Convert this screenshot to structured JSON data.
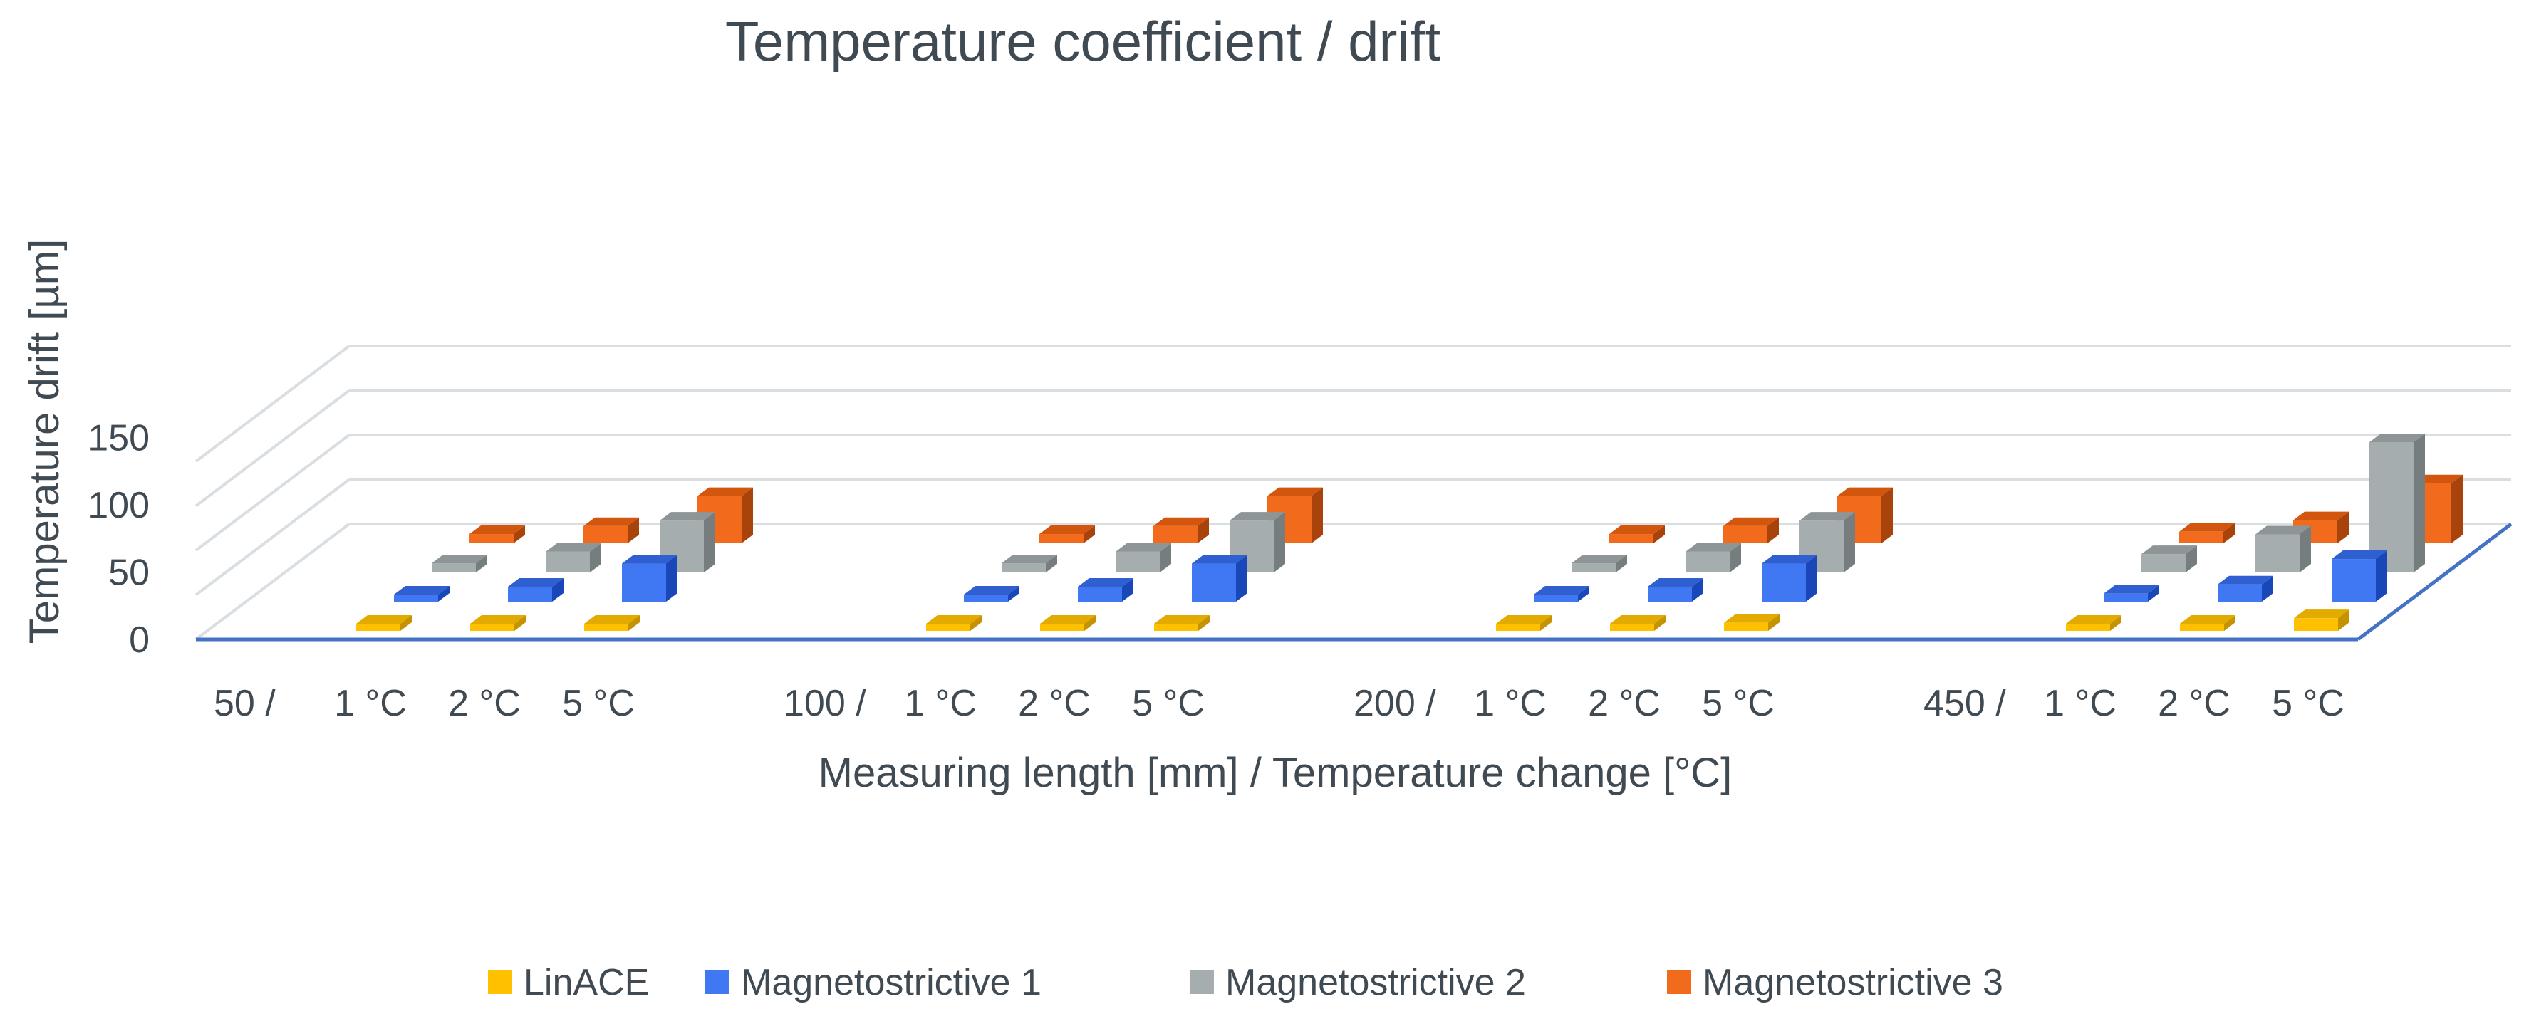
{
  "chart_data": {
    "type": "bar",
    "title": "Temperature coefficient / drift",
    "xlabel": "Measuring  length [mm] / Temperature change [°C]",
    "ylabel": "Temperature drift [µm]",
    "ylim": [
      0,
      150
    ],
    "yticks": [
      "0",
      "50",
      "100",
      "150"
    ],
    "grid": true,
    "legend_position": "bottom",
    "groups": [
      {
        "label": "50 /",
        "subcategories": [
          "1 °C",
          "2 °C",
          "5 °C"
        ]
      },
      {
        "label": "100 /",
        "subcategories": [
          "1 °C",
          "2 °C",
          "5 °C"
        ]
      },
      {
        "label": "200 /",
        "subcategories": [
          "1 °C",
          "2 °C",
          "5 °C"
        ]
      },
      {
        "label": "450 /",
        "subcategories": [
          "1 °C",
          "2 °C",
          "5 °C"
        ]
      }
    ],
    "series": [
      {
        "name": "LinACE",
        "color": "#FFC000",
        "side": "#C59200",
        "top": "#E3AA00",
        "values": [
          [
            3,
            3,
            4
          ],
          [
            3,
            4,
            5
          ],
          [
            3,
            5,
            7
          ],
          [
            5,
            6,
            11
          ]
        ]
      },
      {
        "name": "Magnetostrictive 1",
        "color": "#3F78F2",
        "side": "#1A47B8",
        "top": "#2F5FD0",
        "values": [
          [
            6,
            13,
            33
          ],
          [
            6,
            13,
            33
          ],
          [
            6,
            13,
            33
          ],
          [
            7,
            15,
            37
          ]
        ]
      },
      {
        "name": "Magnetostrictive 2",
        "color": "#A5ADAE",
        "side": "#757D7F",
        "top": "#8D9596",
        "values": [
          [
            8,
            18,
            45
          ],
          [
            8,
            18,
            45
          ],
          [
            8,
            18,
            45
          ],
          [
            16,
            33,
            113
          ]
        ]
      },
      {
        "name": "Magnetostrictive 3",
        "color": "#F26B1D",
        "side": "#A8430C",
        "top": "#D3560F",
        "values": [
          [
            8,
            15,
            41
          ],
          [
            8,
            15,
            41
          ],
          [
            8,
            15,
            41
          ],
          [
            10,
            20,
            52
          ]
        ]
      }
    ]
  }
}
